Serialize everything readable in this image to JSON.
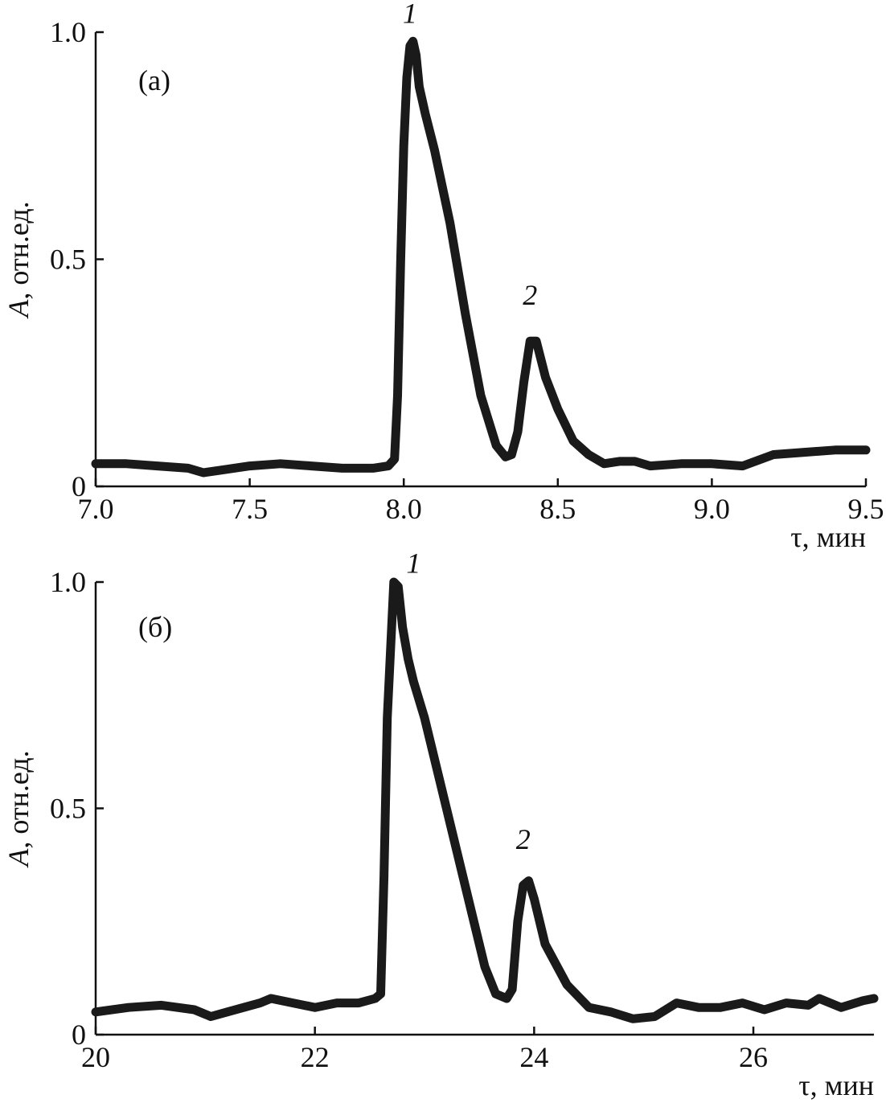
{
  "chart_data": [
    {
      "type": "line",
      "panel_label": "(а)",
      "xlabel": "τ, мин",
      "ylabel_var": "A",
      "ylabel_rest": ", отн.ед.",
      "xlim": [
        7.0,
        9.5
      ],
      "ylim": [
        0,
        1.0
      ],
      "x_ticks": [
        7.0,
        7.5,
        8.0,
        8.5,
        9.0,
        9.5
      ],
      "x_tick_labels": [
        "7.0",
        "7.5",
        "8.0",
        "8.5",
        "9.0",
        "9.5"
      ],
      "y_ticks": [
        0,
        0.5,
        1.0
      ],
      "y_tick_labels": [
        "0",
        "0.5",
        "1.0"
      ],
      "annotations": [
        {
          "text": "1",
          "x": 8.02,
          "y": 1.02
        },
        {
          "text": "2",
          "x": 8.41,
          "y": 0.4
        }
      ],
      "series": [
        {
          "x": [
            7.0,
            7.1,
            7.2,
            7.3,
            7.35,
            7.4,
            7.5,
            7.6,
            7.7,
            7.8,
            7.9,
            7.95,
            7.97,
            7.98,
            7.99,
            8.0,
            8.01,
            8.02,
            8.03,
            8.04,
            8.05,
            8.07,
            8.1,
            8.15,
            8.2,
            8.25,
            8.3,
            8.33,
            8.35,
            8.37,
            8.39,
            8.41,
            8.43,
            8.46,
            8.5,
            8.55,
            8.6,
            8.65,
            8.7,
            8.75,
            8.8,
            8.9,
            9.0,
            9.1,
            9.2,
            9.3,
            9.4,
            9.5
          ],
          "y": [
            0.05,
            0.05,
            0.045,
            0.04,
            0.03,
            0.035,
            0.045,
            0.05,
            0.045,
            0.04,
            0.04,
            0.045,
            0.06,
            0.2,
            0.5,
            0.75,
            0.9,
            0.97,
            0.98,
            0.95,
            0.88,
            0.82,
            0.74,
            0.58,
            0.38,
            0.2,
            0.09,
            0.065,
            0.07,
            0.12,
            0.23,
            0.32,
            0.32,
            0.24,
            0.17,
            0.1,
            0.07,
            0.05,
            0.055,
            0.055,
            0.045,
            0.05,
            0.05,
            0.045,
            0.07,
            0.075,
            0.08,
            0.08
          ]
        }
      ]
    },
    {
      "type": "line",
      "panel_label": "(б)",
      "xlabel": "τ, мин",
      "ylabel_var": "A",
      "ylabel_rest": ", отн.ед.",
      "xlim": [
        20,
        27.1
      ],
      "ylim": [
        0,
        1.0
      ],
      "x_ticks": [
        20,
        22,
        24,
        26
      ],
      "x_tick_labels": [
        "20",
        "22",
        "24",
        "26"
      ],
      "y_ticks": [
        0,
        0.5,
        1.0
      ],
      "y_tick_labels": [
        "0",
        "0.5",
        "1.0"
      ],
      "annotations": [
        {
          "text": "1",
          "x": 22.9,
          "y": 1.02
        },
        {
          "text": "2",
          "x": 23.9,
          "y": 0.41
        }
      ],
      "series": [
        {
          "x": [
            20.0,
            20.3,
            20.6,
            20.9,
            21.05,
            21.2,
            21.5,
            21.6,
            21.8,
            22.0,
            22.2,
            22.4,
            22.55,
            22.6,
            22.63,
            22.66,
            22.7,
            22.72,
            22.76,
            22.8,
            22.85,
            22.9,
            22.95,
            23.0,
            23.2,
            23.4,
            23.55,
            23.65,
            23.75,
            23.8,
            23.85,
            23.9,
            23.95,
            24.0,
            24.1,
            24.3,
            24.5,
            24.7,
            24.9,
            25.1,
            25.3,
            25.5,
            25.7,
            25.9,
            26.1,
            26.3,
            26.5,
            26.6,
            26.8,
            27.0,
            27.1
          ],
          "y": [
            0.05,
            0.06,
            0.065,
            0.055,
            0.04,
            0.05,
            0.07,
            0.08,
            0.07,
            0.06,
            0.07,
            0.07,
            0.08,
            0.09,
            0.35,
            0.7,
            0.9,
            1.0,
            0.99,
            0.9,
            0.83,
            0.78,
            0.74,
            0.7,
            0.5,
            0.3,
            0.15,
            0.09,
            0.08,
            0.1,
            0.25,
            0.33,
            0.34,
            0.3,
            0.2,
            0.11,
            0.06,
            0.05,
            0.035,
            0.04,
            0.07,
            0.06,
            0.06,
            0.07,
            0.055,
            0.07,
            0.065,
            0.08,
            0.06,
            0.075,
            0.08
          ]
        }
      ]
    }
  ]
}
